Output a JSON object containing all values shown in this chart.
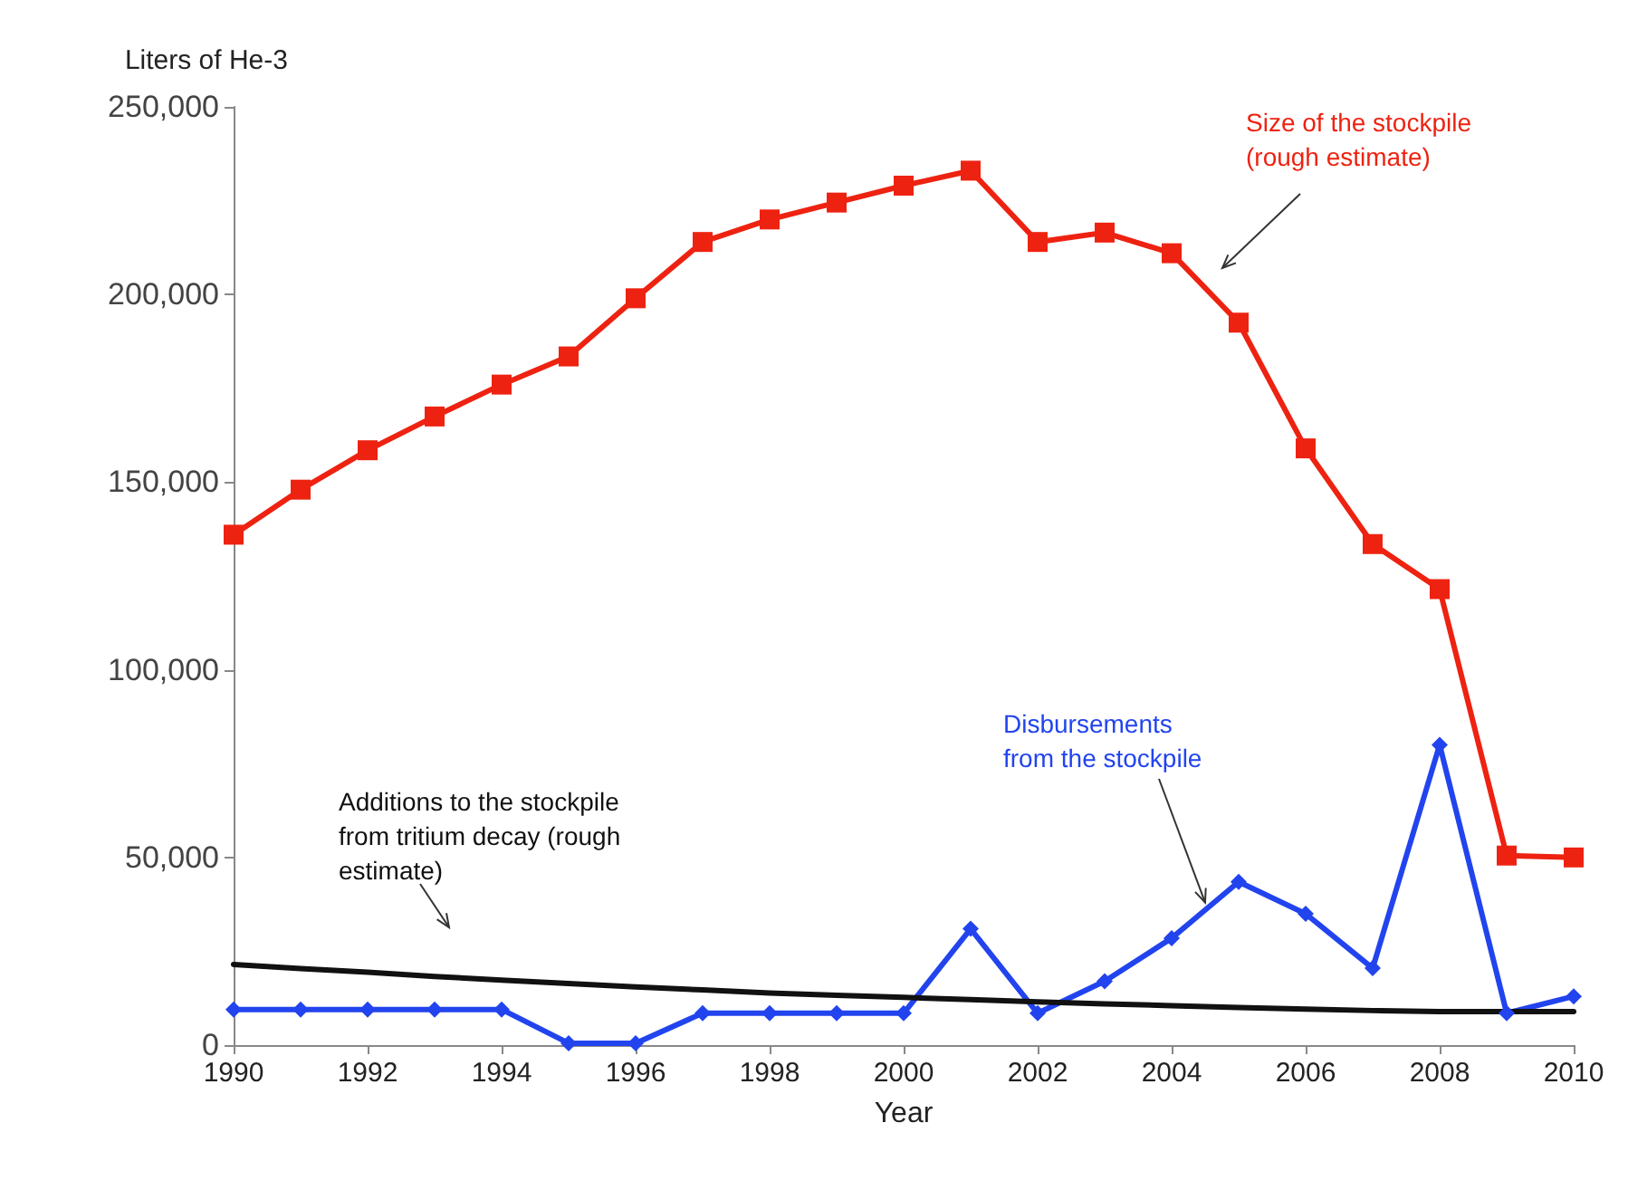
{
  "chart_data": {
    "type": "line",
    "xlabel": "Year",
    "ylabel": "Liters of He-3",
    "x": [
      1990,
      1991,
      1992,
      1993,
      1994,
      1995,
      1996,
      1997,
      1998,
      1999,
      2000,
      2001,
      2002,
      2003,
      2004,
      2005,
      2006,
      2007,
      2008,
      2009,
      2010
    ],
    "series": [
      {
        "color": "#ee2211",
        "marker": "square",
        "values": [
          136000,
          148000,
          158500,
          167500,
          176000,
          183500,
          199000,
          214000,
          220000,
          224500,
          229000,
          233000,
          214000,
          216500,
          211000,
          192500,
          159000,
          133500,
          121500,
          50500,
          50000
        ]
      },
      {
        "color": "#2244ee",
        "marker": "diamond",
        "values": [
          9500,
          9500,
          9500,
          9500,
          9500,
          500,
          500,
          8500,
          8500,
          8500,
          8500,
          31000,
          8500,
          17000,
          28500,
          43500,
          35000,
          20500,
          80000,
          8500,
          13000
        ]
      },
      {
        "color": "#111111",
        "marker": "none",
        "values": [
          21500,
          20400,
          19400,
          18300,
          17300,
          16400,
          15500,
          14700,
          13900,
          13300,
          12700,
          12100,
          11500,
          11000,
          10500,
          10000,
          9600,
          9200,
          8900,
          8900,
          8900
        ]
      }
    ],
    "xlim": [
      1990,
      2010
    ],
    "xticks": [
      1990,
      1992,
      1994,
      1996,
      1998,
      2000,
      2002,
      2004,
      2006,
      2008,
      2010
    ],
    "ylim": [
      0,
      250000
    ],
    "yticks": [
      0,
      {
        "value": 50000,
        "label": "50,000"
      },
      {
        "value": 100000,
        "label": "100,000"
      },
      {
        "value": 150000,
        "label": "150,000"
      },
      {
        "value": 200000,
        "label": "200,000"
      },
      {
        "value": 250000,
        "label": "250,000"
      }
    ],
    "grid": false,
    "annotations": [
      "Size of the stockpile\n(rough estimate)",
      {
        "text": "Disbursements\nfrom the stockpile",
        "x": 2004.5,
        "y": 38000
      },
      "Additions to the stockpile\nfrom tritium decay (rough\nestimate)"
    ]
  }
}
